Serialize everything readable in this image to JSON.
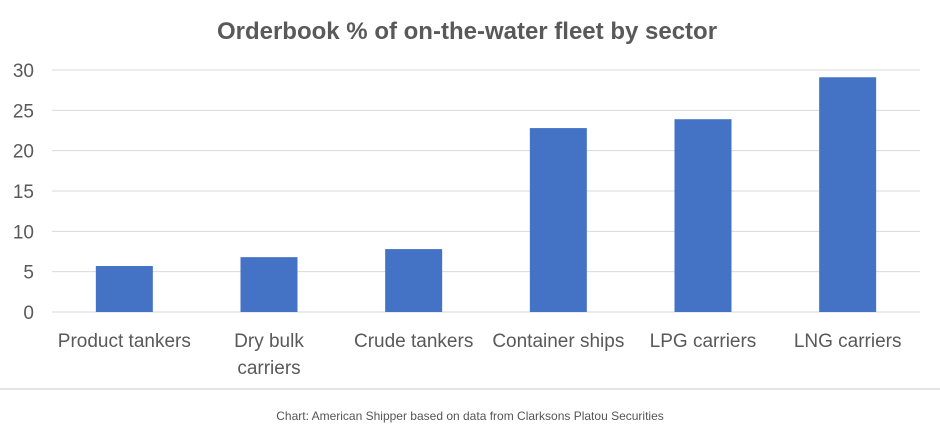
{
  "chart_data": {
    "type": "bar",
    "title": "Orderbook % of on-the-water fleet by sector",
    "categories": [
      "Product tankers",
      "Dry bulk carriers",
      "Crude tankers",
      "Container ships",
      "LPG carriers",
      "LNG carriers"
    ],
    "category_lines": [
      [
        "Product tankers"
      ],
      [
        "Dry bulk",
        "carriers"
      ],
      [
        "Crude tankers"
      ],
      [
        "Container ships"
      ],
      [
        "LPG carriers"
      ],
      [
        "LNG carriers"
      ]
    ],
    "values": [
      5.7,
      6.8,
      7.8,
      22.8,
      23.9,
      29.1
    ],
    "ylim": [
      0,
      30
    ],
    "yticks": [
      0,
      5,
      10,
      15,
      20,
      25,
      30
    ],
    "xlabel": "",
    "ylabel": "",
    "grid": true,
    "bar_color": "#4472C4",
    "gridline_color": "#d9d9d9"
  },
  "caption": "Chart: American Shipper based on data from Clarksons Platou Securities"
}
